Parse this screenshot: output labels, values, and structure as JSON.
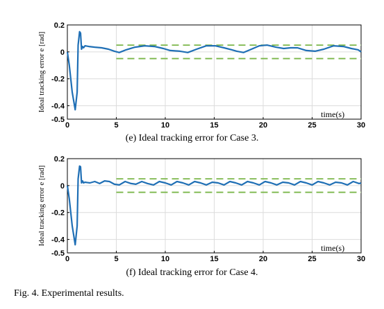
{
  "figure": {
    "caption_e": "(e) Ideal tracking error for Case 3.",
    "caption_f": "(f) Ideal tracking error for Case 4.",
    "figure_caption": "Fig. 4.   Experimental results."
  },
  "colors": {
    "line": "#1f6fb5",
    "bound": "#7ab648",
    "grid": "#dcdcdc",
    "axis": "#000000"
  },
  "chart_data": [
    {
      "type": "line",
      "ylabel": "Ideal tracking error e [rad]",
      "xlabel": "time(s)",
      "xlim": [
        0,
        30
      ],
      "ylim": [
        -0.5,
        0.2
      ],
      "xticks": [
        0,
        5,
        10,
        15,
        20,
        25,
        30
      ],
      "yticks": [
        0.2,
        0,
        -0.2,
        -0.4,
        -0.5
      ],
      "ytick_labels": [
        "0.2",
        "0",
        "-0.2",
        "-0.4",
        "-0.5"
      ],
      "grid": true,
      "bounds": {
        "values": [
          0.05,
          -0.05
        ],
        "x_start": 5,
        "style": "dashed"
      },
      "series": [
        {
          "x": [
            0,
            0.2,
            0.5,
            0.8,
            1.0,
            1.1,
            1.25,
            1.35,
            1.45,
            1.55,
            1.65,
            1.8,
            2.2,
            2.8,
            3.5,
            4.2,
            4.8,
            5.3,
            6.0,
            6.9,
            7.9,
            8.9,
            9.8,
            10.5,
            11.5,
            12.3,
            13.2,
            14.2,
            15.1,
            16.0,
            16.8,
            17.3,
            18.0,
            18.8,
            19.6,
            20.4,
            21.3,
            22.1,
            22.8,
            23.5,
            24.4,
            25.3,
            26.2,
            27.2,
            28.2,
            29.0,
            29.7,
            30.0
          ],
          "y": [
            0,
            -0.1,
            -0.3,
            -0.43,
            -0.3,
            0.05,
            0.15,
            0.14,
            0.02,
            0.04,
            0.03,
            0.045,
            0.04,
            0.035,
            0.03,
            0.02,
            0.005,
            -0.005,
            0.015,
            0.035,
            0.045,
            0.04,
            0.025,
            0.01,
            0.005,
            -0.005,
            0.02,
            0.045,
            0.045,
            0.03,
            0.015,
            0.005,
            -0.005,
            0.02,
            0.045,
            0.05,
            0.035,
            0.025,
            0.03,
            0.03,
            0.01,
            0.005,
            0.02,
            0.045,
            0.04,
            0.025,
            0.015,
            0.0
          ]
        }
      ]
    },
    {
      "type": "line",
      "ylabel": "Ideal tracking error e [rad]",
      "xlabel": "time(s)",
      "xlim": [
        0,
        30
      ],
      "ylim": [
        -0.5,
        0.2
      ],
      "xticks": [
        0,
        5,
        10,
        15,
        20,
        25,
        30
      ],
      "yticks": [
        0.2,
        0,
        -0.2,
        -0.4,
        -0.5
      ],
      "ytick_labels": [
        "0.2",
        "0",
        "-0.2",
        "-0.4",
        "-0.5"
      ],
      "grid": true,
      "bounds": {
        "values": [
          0.05,
          -0.05
        ],
        "x_start": 5,
        "style": "dashed"
      },
      "series": [
        {
          "x": [
            0,
            0.2,
            0.5,
            0.8,
            1.0,
            1.1,
            1.25,
            1.35,
            1.45,
            1.55,
            1.65,
            1.8,
            2.3,
            2.8,
            3.3,
            3.8,
            4.3,
            4.8,
            5.3,
            5.9,
            6.5,
            7.0,
            7.6,
            8.2,
            8.8,
            9.4,
            10.0,
            10.6,
            11.2,
            11.8,
            12.4,
            13.0,
            13.6,
            14.2,
            14.8,
            15.4,
            16.0,
            16.6,
            17.2,
            17.8,
            18.4,
            19.0,
            19.6,
            20.2,
            20.8,
            21.4,
            22.0,
            22.6,
            23.2,
            23.8,
            24.4,
            25.0,
            25.6,
            26.2,
            26.8,
            27.4,
            28.0,
            28.6,
            29.2,
            29.8,
            30.0
          ],
          "y": [
            0,
            -0.1,
            -0.3,
            -0.44,
            -0.3,
            0.05,
            0.145,
            0.14,
            0.02,
            0.035,
            0.02,
            0.025,
            0.02,
            0.03,
            0.015,
            0.035,
            0.03,
            0.01,
            0.005,
            0.03,
            0.015,
            0.01,
            0.03,
            0.015,
            0.005,
            0.03,
            0.02,
            0.005,
            0.03,
            0.02,
            0.005,
            0.03,
            0.02,
            0.005,
            0.025,
            0.02,
            0.005,
            0.03,
            0.02,
            0.005,
            0.03,
            0.02,
            0.005,
            0.03,
            0.02,
            0.005,
            0.025,
            0.02,
            0.005,
            0.03,
            0.02,
            0.005,
            0.03,
            0.02,
            0.005,
            0.025,
            0.02,
            0.005,
            0.03,
            0.015,
            0.02
          ]
        }
      ]
    }
  ]
}
